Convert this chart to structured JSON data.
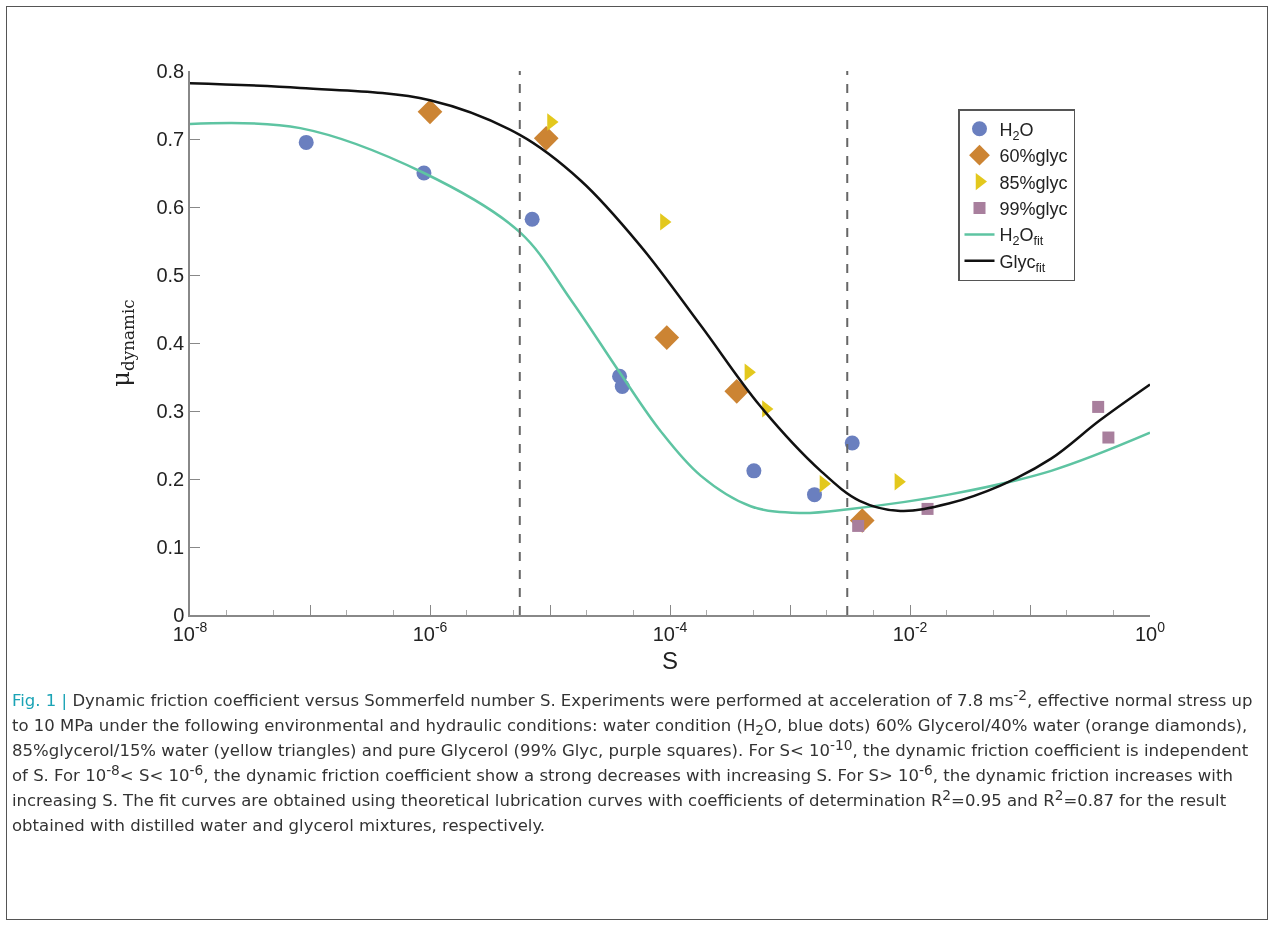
{
  "chart_data": {
    "type": "scatter",
    "xlabel": "S",
    "ylabel": "μ$_{dynamic}$",
    "log": "x",
    "grid": false,
    "legend": "top right",
    "xlim": [
      1e-08,
      1
    ],
    "xticks": [
      {
        "value": 1e-08,
        "label": "10$^{-8}$"
      },
      {
        "value": 1e-07,
        "label": null
      },
      {
        "value": 1e-06,
        "label": "10$^{-6}$"
      },
      {
        "value": 1e-05,
        "label": null
      },
      {
        "value": 0.0001,
        "label": "10$^{-4}$"
      },
      {
        "value": 0.001,
        "label": null
      },
      {
        "value": 0.01,
        "label": "10$^{-2}$"
      },
      {
        "value": 0.1,
        "label": null
      },
      {
        "value": 1,
        "label": "10$^{0}$"
      }
    ],
    "ylim": [
      0,
      0.8
    ],
    "yticks": [
      0,
      0.1,
      0.2,
      0.3,
      0.4,
      0.5,
      0.6,
      0.7,
      0.8
    ],
    "series": [
      {
        "name": "H$_{2}$O",
        "marker": "circle",
        "color": "#6a7fbf",
        "x": [
          9.3e-08,
          8.9e-07,
          7.1e-06,
          3.8e-05,
          4e-05,
          0.0005,
          0.0016,
          0.0033
        ],
        "values": [
          0.695,
          0.65,
          0.582,
          0.351,
          0.336,
          0.212,
          0.177,
          0.253
        ]
      },
      {
        "name": "60%glyc",
        "marker": "diamond",
        "color": "#cc8433",
        "x": [
          1e-06,
          9.3e-06,
          9.4e-05,
          0.00036,
          0.004
        ],
        "values": [
          0.74,
          0.701,
          0.408,
          0.329,
          0.139
        ]
      },
      {
        "name": "85%glyc",
        "marker": "triangle",
        "color": "#e3c81d",
        "x": [
          1.02e-05,
          8.9e-05,
          0.00045,
          0.00063,
          0.0019,
          0.008
        ],
        "values": [
          0.725,
          0.578,
          0.357,
          0.303,
          0.193,
          0.196
        ]
      },
      {
        "name": "99%glyc",
        "marker": "square",
        "color": "#a87f9d",
        "x": [
          0.0037,
          0.014,
          0.37,
          0.45
        ],
        "values": [
          0.131,
          0.156,
          0.306,
          0.261
        ]
      },
      {
        "name": "H$_{2}$O$_{fit}$",
        "type": "line",
        "marker": "none",
        "line_style": "solid",
        "color": "#5ec4a2",
        "x": [
          1e-08,
          8.3e-08,
          8.9e-07,
          5.6e-06,
          1.5e-05,
          3.8e-05,
          8.3e-05,
          0.00018,
          0.00047,
          0.0012,
          0.0032,
          0.021,
          0.15,
          1
        ],
        "values": [
          0.722,
          0.716,
          0.65,
          0.563,
          0.463,
          0.357,
          0.271,
          0.205,
          0.16,
          0.15,
          0.156,
          0.177,
          0.212,
          0.268
        ]
      },
      {
        "name": "Glyc$_{fit}$",
        "type": "line",
        "marker": "none",
        "line_style": "solid",
        "color": "#111111",
        "x": [
          1e-08,
          8.3e-08,
          1e-06,
          5.6e-06,
          1.8e-05,
          5.6e-05,
          0.00018,
          0.00056,
          0.0018,
          0.0038,
          0.0083,
          0.021,
          0.056,
          0.15,
          0.38,
          1
        ],
        "values": [
          0.782,
          0.775,
          0.757,
          0.706,
          0.639,
          0.544,
          0.426,
          0.308,
          0.212,
          0.168,
          0.153,
          0.164,
          0.19,
          0.23,
          0.286,
          0.339
        ]
      }
    ],
    "ref_lines": [
      {
        "axis": "x",
        "value": 5.6e-06,
        "color": "#666666",
        "line_style": "dashed"
      },
      {
        "axis": "x",
        "value": 0.003,
        "color": "#666666",
        "line_style": "dashed"
      }
    ],
    "annotations": [
      "Fig. 1 |",
      "Dynamic friction coefficient versus Sommerfeld number S. Experiments were performed at acceleration of 7.8 ms$^{-2}$, effective normal stress up to 10 MPa under the following environmental and hydraulic conditions: water condition (H$_{2}$O, blue dots) 60% Glycerol/40% water (orange diamonds), 85%glycerol/15% water (yellow triangles) and pure Glycerol (99% Glyc, purple squares). For S< 10$^{-10}$, the dynamic friction coefficient is independent of S. For 10$^{-8}$< S< 10$^{-6}$, the dynamic friction coefficient show a strong decreases with increasing S. For S> 10$^{-6}$, the dynamic friction increases with increasing S. The fit curves are obtained using theoretical lubrication curves with coefficients of determination R$^{2}$=0.95 and R$^{2}$=0.87 for the result obtained with distilled water and glycerol mixtures, respectively."
    ]
  }
}
